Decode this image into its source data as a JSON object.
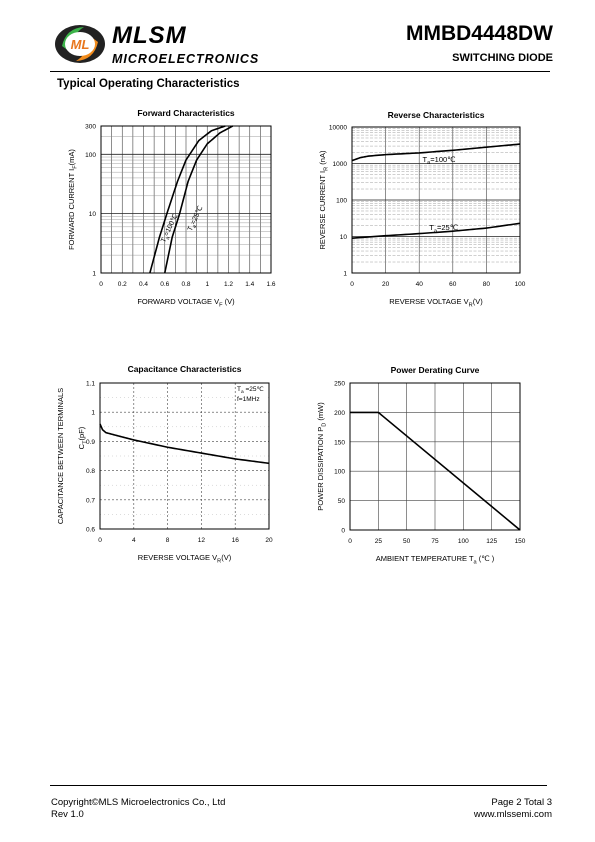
{
  "header": {
    "company": "MLSM",
    "division": "MICROELECTRONICS",
    "logo_mark": "ML",
    "part_number": "MMBD4448DW",
    "product_type": "SWITCHING DIODE"
  },
  "section_title": "Typical Operating Characteristics",
  "footer": {
    "copyright": "Copyright©MLS Microelectronics Co., Ltd",
    "revision": "Rev 1.0",
    "page": "Page 2 Total 3",
    "website": "www.mlssemi.com"
  },
  "chart_data": [
    {
      "id": "forward",
      "type": "line",
      "title": "Forward  Characteristics",
      "xlabel": "FORWARD VOLTAGE  V",
      "xlabel_sub": "F",
      "xlabel_unit": " (V)",
      "ylabel": "FORWARD CURRENT   I",
      "ylabel_sub": "F",
      "ylabel_unit": "(mA)",
      "x_scale": "linear",
      "y_scale": "log",
      "xlim": [
        0,
        1.6
      ],
      "ylim": [
        1,
        300
      ],
      "x_ticks": [
        "0",
        "0.2",
        "0.4",
        "0.6",
        "0.8",
        "1",
        "1.2",
        "1.4",
        "1.6"
      ],
      "y_ticks": [
        "1",
        "10",
        "100",
        "300"
      ],
      "grid": true,
      "series": [
        {
          "label_text": "T",
          "label_sub": "a",
          "label_rest": "=100℃",
          "points": [
            [
              0.46,
              1
            ],
            [
              0.55,
              4
            ],
            [
              0.62,
              10
            ],
            [
              0.72,
              35
            ],
            [
              0.8,
              80
            ],
            [
              0.92,
              170
            ],
            [
              1.04,
              250
            ],
            [
              1.17,
              300
            ]
          ]
        },
        {
          "label_text": "T",
          "label_sub": "a",
          "label_rest": "=25℃",
          "points": [
            [
              0.6,
              1
            ],
            [
              0.67,
              4
            ],
            [
              0.74,
              10
            ],
            [
              0.82,
              35
            ],
            [
              0.9,
              80
            ],
            [
              1.0,
              150
            ],
            [
              1.12,
              230
            ],
            [
              1.24,
              300
            ]
          ]
        }
      ]
    },
    {
      "id": "reverse",
      "type": "line",
      "title": "Reverse  Characteristics",
      "xlabel": "REVERSE VOLTAGE    V",
      "xlabel_sub": "R",
      "xlabel_unit": "(V)",
      "ylabel": "REVERSE CURRENT   I",
      "ylabel_sub": "R",
      "ylabel_unit": "  (nA)",
      "x_scale": "linear",
      "y_scale": "log",
      "xlim": [
        0,
        100
      ],
      "ylim": [
        1,
        10000
      ],
      "x_ticks": [
        "0",
        "20",
        "40",
        "60",
        "80",
        "100"
      ],
      "y_ticks": [
        "1",
        "10",
        "100",
        "1000",
        "10000"
      ],
      "grid": true,
      "series": [
        {
          "label_text": "T",
          "label_sub": "a",
          "label_rest": "=100℃",
          "points": [
            [
              0,
              1200
            ],
            [
              5,
              1450
            ],
            [
              10,
              1600
            ],
            [
              20,
              1750
            ],
            [
              40,
              1950
            ],
            [
              60,
              2300
            ],
            [
              80,
              2800
            ],
            [
              100,
              3400
            ]
          ]
        },
        {
          "label_text": "T",
          "label_sub": "a",
          "label_rest": "=25℃",
          "points": [
            [
              0,
              9
            ],
            [
              20,
              10.5
            ],
            [
              40,
              12
            ],
            [
              60,
              14
            ],
            [
              80,
              17
            ],
            [
              100,
              23
            ]
          ]
        }
      ]
    },
    {
      "id": "capacitance",
      "type": "line",
      "title": "Capacitance Characteristics",
      "xlabel": "REVERSE VOLTAGE    V",
      "xlabel_sub": "R",
      "xlabel_unit": "(V)",
      "ylabel": "CAPACITANCE BETWEEN TERMINALS",
      "ylabel2": "C",
      "ylabel2_sub": "T",
      "ylabel2_unit": "(pF)",
      "x_scale": "linear",
      "y_scale": "linear",
      "xlim": [
        0,
        20
      ],
      "ylim": [
        0.6,
        1.1
      ],
      "x_ticks": [
        "0",
        "4",
        "8",
        "12",
        "16",
        "20"
      ],
      "y_ticks": [
        "0.6",
        "0.7",
        "0.8",
        "0.9",
        "1",
        "1.1"
      ],
      "grid": true,
      "annotation_1": "T",
      "annotation_1_sub": "a",
      "annotation_1_rest": " =25℃",
      "annotation_2": "f=1MHz",
      "series": [
        {
          "points": [
            [
              0,
              0.96
            ],
            [
              0.3,
              0.94
            ],
            [
              0.7,
              0.93
            ],
            [
              2,
              0.92
            ],
            [
              4,
              0.905
            ],
            [
              8,
              0.88
            ],
            [
              12,
              0.86
            ],
            [
              16,
              0.84
            ],
            [
              20,
              0.825
            ]
          ]
        }
      ]
    },
    {
      "id": "derating",
      "type": "line",
      "title": "Power Derating Curve",
      "xlabel": "AMBIENT TEMPERATURE     T",
      "xlabel_sub": "a",
      "xlabel_unit": "  (℃ )",
      "ylabel": "POWER  DISSIPATION  P",
      "ylabel_sub": "D",
      "ylabel_unit": "  (mW)",
      "x_scale": "linear",
      "y_scale": "linear",
      "xlim": [
        0,
        150
      ],
      "ylim": [
        0,
        250
      ],
      "x_ticks": [
        "0",
        "25",
        "50",
        "75",
        "100",
        "125",
        "150"
      ],
      "y_ticks": [
        "0",
        "50",
        "100",
        "150",
        "200",
        "250"
      ],
      "grid": true,
      "series": [
        {
          "points": [
            [
              0,
              200
            ],
            [
              25,
              200
            ],
            [
              150,
              0
            ]
          ]
        }
      ]
    }
  ]
}
